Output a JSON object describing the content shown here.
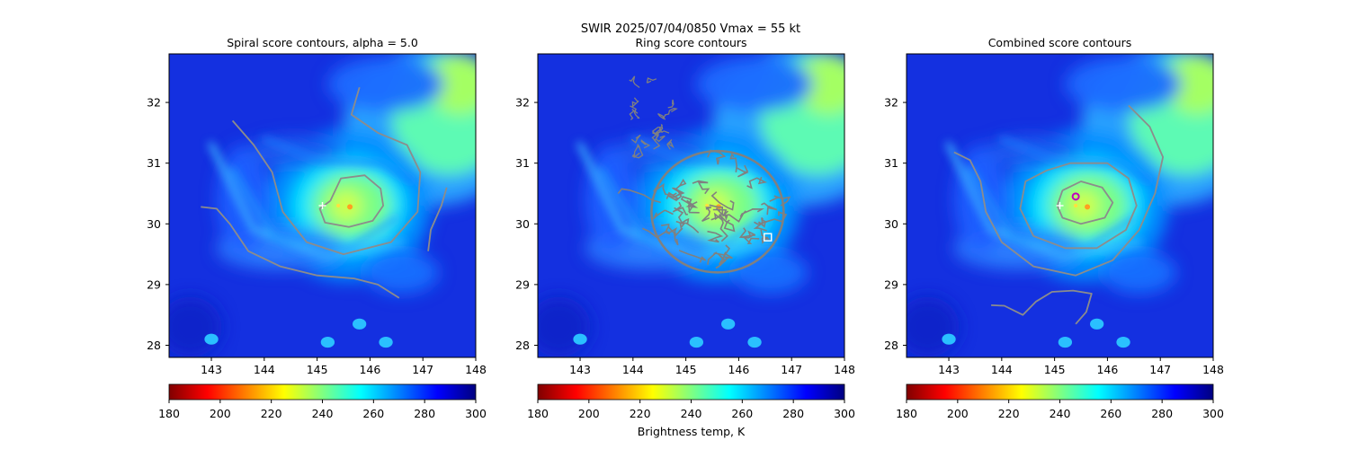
{
  "figure": {
    "suptitle": "SWIR  2025/07/04/0850    Vmax = 55 kt"
  },
  "colormap_stops": [
    "#800000",
    "#ff0000",
    "#ff8000",
    "#ffff00",
    "#80ff80",
    "#00ffff",
    "#0080ff",
    "#0000ff",
    "#000080"
  ],
  "chart_data": [
    {
      "type": "heatmap",
      "title": "Spiral score contours, alpha =  5.0",
      "xlim": [
        142.2,
        148.0
      ],
      "ylim": [
        27.8,
        32.8
      ],
      "xticks": [
        143,
        144,
        145,
        146,
        147,
        148
      ],
      "yticks": [
        28,
        29,
        30,
        31,
        32
      ],
      "colorbar": {
        "ticks": [
          180,
          200,
          220,
          240,
          260,
          280,
          300
        ],
        "range": [
          180,
          300
        ],
        "label": ""
      },
      "center_marker": {
        "lon": 145.1,
        "lat": 30.3
      },
      "contours": [
        [
          [
            145.25,
            30.38
          ],
          [
            145.45,
            30.75
          ],
          [
            145.9,
            30.8
          ],
          [
            146.2,
            30.58
          ],
          [
            146.25,
            30.3
          ],
          [
            146.05,
            30.05
          ],
          [
            145.6,
            29.95
          ],
          [
            145.15,
            30.02
          ],
          [
            145.05,
            30.25
          ],
          [
            145.25,
            30.38
          ]
        ],
        [
          [
            145.8,
            32.25
          ],
          [
            145.65,
            31.8
          ],
          [
            146.15,
            31.5
          ],
          [
            146.7,
            31.3
          ],
          [
            146.95,
            30.85
          ],
          [
            146.9,
            30.2
          ],
          [
            146.4,
            29.7
          ],
          [
            145.5,
            29.5
          ],
          [
            144.8,
            29.7
          ],
          [
            144.35,
            30.2
          ],
          [
            144.15,
            30.85
          ],
          [
            143.8,
            31.3
          ],
          [
            143.4,
            31.7
          ]
        ],
        [
          [
            142.8,
            30.28
          ],
          [
            143.1,
            30.25
          ],
          [
            143.35,
            30.0
          ],
          [
            143.7,
            29.55
          ],
          [
            144.3,
            29.3
          ],
          [
            145.0,
            29.15
          ],
          [
            145.7,
            29.1
          ],
          [
            146.15,
            29.0
          ],
          [
            146.55,
            28.78
          ]
        ],
        [
          [
            147.1,
            29.55
          ],
          [
            147.15,
            29.9
          ],
          [
            147.35,
            30.3
          ],
          [
            147.45,
            30.6
          ]
        ]
      ]
    },
    {
      "type": "heatmap",
      "title": "Ring score contours",
      "xlim": [
        142.2,
        148.0
      ],
      "ylim": [
        27.8,
        32.8
      ],
      "xticks": [
        143,
        144,
        145,
        146,
        147,
        148
      ],
      "yticks": [
        28,
        29,
        30,
        31,
        32
      ],
      "colorbar": {
        "ticks": [
          180,
          200,
          220,
          240,
          260,
          280,
          300
        ],
        "range": [
          180,
          300
        ],
        "label": "Brightness temp, K"
      },
      "square_marker": {
        "lon": 146.55,
        "lat": 29.78
      },
      "ring_region": {
        "center": [
          145.6,
          30.2
        ],
        "radius_lon": 1.25,
        "radius_lat": 1.0
      },
      "contours": []
    },
    {
      "type": "heatmap",
      "title": "Combined score contours",
      "xlim": [
        142.2,
        148.0
      ],
      "ylim": [
        27.8,
        32.8
      ],
      "xticks": [
        143,
        144,
        145,
        146,
        147,
        148
      ],
      "yticks": [
        28,
        29,
        30,
        31,
        32
      ],
      "colorbar": {
        "ticks": [
          180,
          200,
          220,
          240,
          260,
          280,
          300
        ],
        "range": [
          180,
          300
        ],
        "label": ""
      },
      "center_marker": {
        "lon": 145.1,
        "lat": 30.3
      },
      "best_marker": {
        "lon": 145.4,
        "lat": 30.45
      },
      "contours": [
        [
          [
            145.15,
            30.55
          ],
          [
            145.5,
            30.7
          ],
          [
            145.9,
            30.6
          ],
          [
            146.1,
            30.35
          ],
          [
            145.95,
            30.1
          ],
          [
            145.5,
            30.0
          ],
          [
            145.15,
            30.1
          ],
          [
            145.05,
            30.3
          ],
          [
            145.15,
            30.55
          ]
        ],
        [
          [
            144.85,
            30.88
          ],
          [
            145.3,
            31.0
          ],
          [
            146.0,
            31.0
          ],
          [
            146.4,
            30.75
          ],
          [
            146.55,
            30.3
          ],
          [
            146.35,
            29.9
          ],
          [
            145.8,
            29.6
          ],
          [
            145.2,
            29.6
          ],
          [
            144.6,
            29.8
          ],
          [
            144.35,
            30.25
          ],
          [
            144.45,
            30.7
          ],
          [
            144.85,
            30.88
          ]
        ],
        [
          [
            146.4,
            31.95
          ],
          [
            146.8,
            31.6
          ],
          [
            147.05,
            31.1
          ],
          [
            146.9,
            30.5
          ],
          [
            146.6,
            29.9
          ],
          [
            146.1,
            29.4
          ],
          [
            145.4,
            29.15
          ],
          [
            144.6,
            29.3
          ],
          [
            144.0,
            29.7
          ],
          [
            143.7,
            30.2
          ],
          [
            143.6,
            30.7
          ],
          [
            143.4,
            31.05
          ],
          [
            143.1,
            31.18
          ]
        ],
        [
          [
            143.8,
            28.66
          ],
          [
            144.05,
            28.65
          ],
          [
            144.4,
            28.5
          ],
          [
            144.65,
            28.72
          ],
          [
            144.95,
            28.88
          ],
          [
            145.35,
            28.9
          ],
          [
            145.7,
            28.85
          ],
          [
            145.6,
            28.55
          ],
          [
            145.4,
            28.35
          ]
        ]
      ]
    }
  ]
}
